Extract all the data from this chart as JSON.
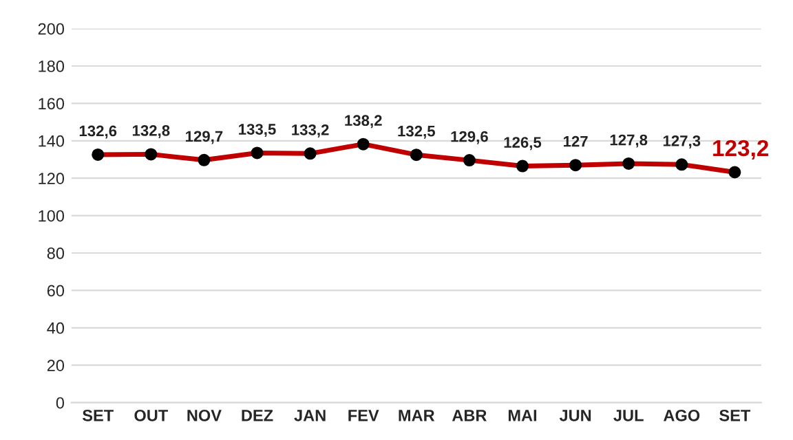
{
  "chart_data": {
    "type": "line",
    "categories": [
      "SET",
      "OUT",
      "NOV",
      "DEZ",
      "JAN",
      "FEV",
      "MAR",
      "ABR",
      "MAI",
      "JUN",
      "JUL",
      "AGO",
      "SET"
    ],
    "series": [
      {
        "color": "#c00000",
        "colors": [
          "#000000",
          "#000000",
          "#000000",
          "#000000",
          "#000000",
          "#000000",
          "#000000",
          "#000000",
          "#000000",
          "#000000",
          "#000000",
          "#000000",
          "#000000"
        ],
        "values": [
          132.6,
          132.8,
          129.7,
          133.5,
          133.2,
          138.2,
          132.5,
          129.6,
          126.5,
          127,
          127.8,
          127.3,
          123.2
        ],
        "value_labels": [
          "132,6",
          "132,8",
          "129,7",
          "133,5",
          "133,2",
          "138,2",
          "132,5",
          "129,6",
          "126,5",
          "127",
          "127,8",
          "127,3",
          "123,2"
        ]
      }
    ],
    "ylim": [
      0,
      200
    ],
    "yticks": [
      0,
      20,
      40,
      60,
      80,
      100,
      120,
      140,
      160,
      180,
      200
    ],
    "grid": "y",
    "marker": "circle",
    "line_style": "solid",
    "legend": false
  }
}
